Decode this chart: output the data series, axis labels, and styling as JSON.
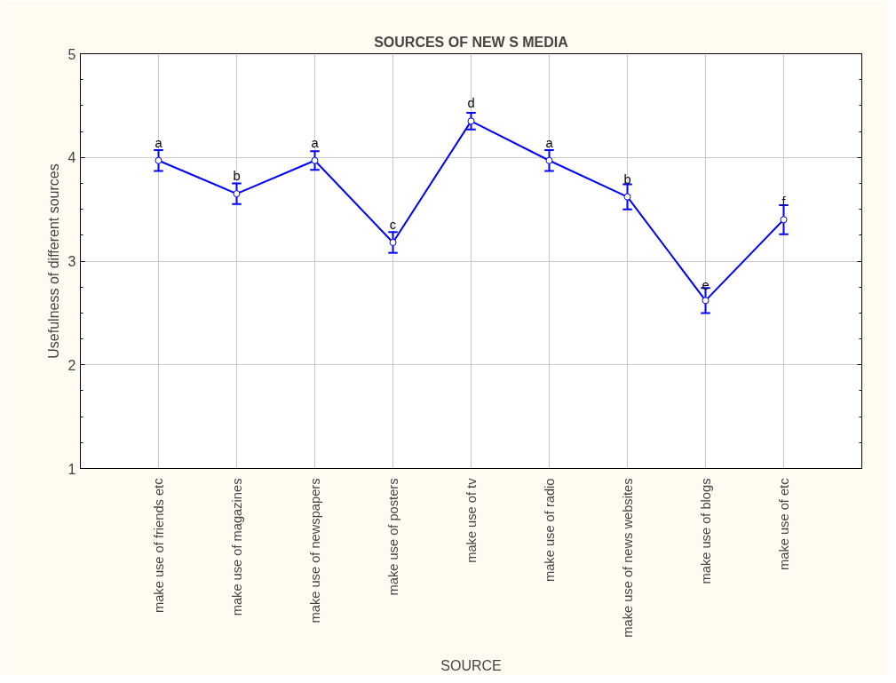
{
  "chart_data": {
    "type": "line",
    "title": "SOURCES OF NEW S MEDIA",
    "xlabel": "SOURCE",
    "ylabel": "Usefulness of different sources",
    "categories": [
      "make use of friends etc",
      "make use of magazines",
      "make use of newspapers",
      "make use of posters",
      "make use of tv",
      "make use of radio",
      "make use of news websites",
      "make use of blogs",
      "make use of etc"
    ],
    "series": [
      {
        "color": "#0000ff",
        "values": [
          3.97,
          3.65,
          3.97,
          3.18,
          4.35,
          3.97,
          3.62,
          2.62,
          3.4
        ],
        "errors": [
          0.1,
          0.1,
          0.09,
          0.1,
          0.08,
          0.1,
          0.12,
          0.12,
          0.14
        ]
      }
    ],
    "ylim": [
      1,
      5
    ],
    "yticks": [
      1,
      2,
      3,
      4,
      5
    ],
    "grid": true,
    "marker": "circle",
    "line_style": "solid",
    "annotations": [
      {
        "text": "a",
        "x": "make use of friends etc",
        "y": 3.97
      },
      {
        "text": "b",
        "x": "make use of magazines",
        "y": 3.65
      },
      {
        "text": "a",
        "x": "make use of newspapers",
        "y": 3.97
      },
      {
        "text": "c",
        "x": "make use of posters",
        "y": 3.18
      },
      {
        "text": "d",
        "x": "make use of tv",
        "y": 4.35
      },
      {
        "text": "a",
        "x": "make use of radio",
        "y": 3.97
      },
      {
        "text": "b",
        "x": "make use of news websites",
        "y": 3.62
      },
      {
        "text": "e",
        "x": "make use of blogs",
        "y": 2.62
      },
      {
        "text": "f",
        "x": "make use of etc",
        "y": 3.4
      }
    ]
  }
}
